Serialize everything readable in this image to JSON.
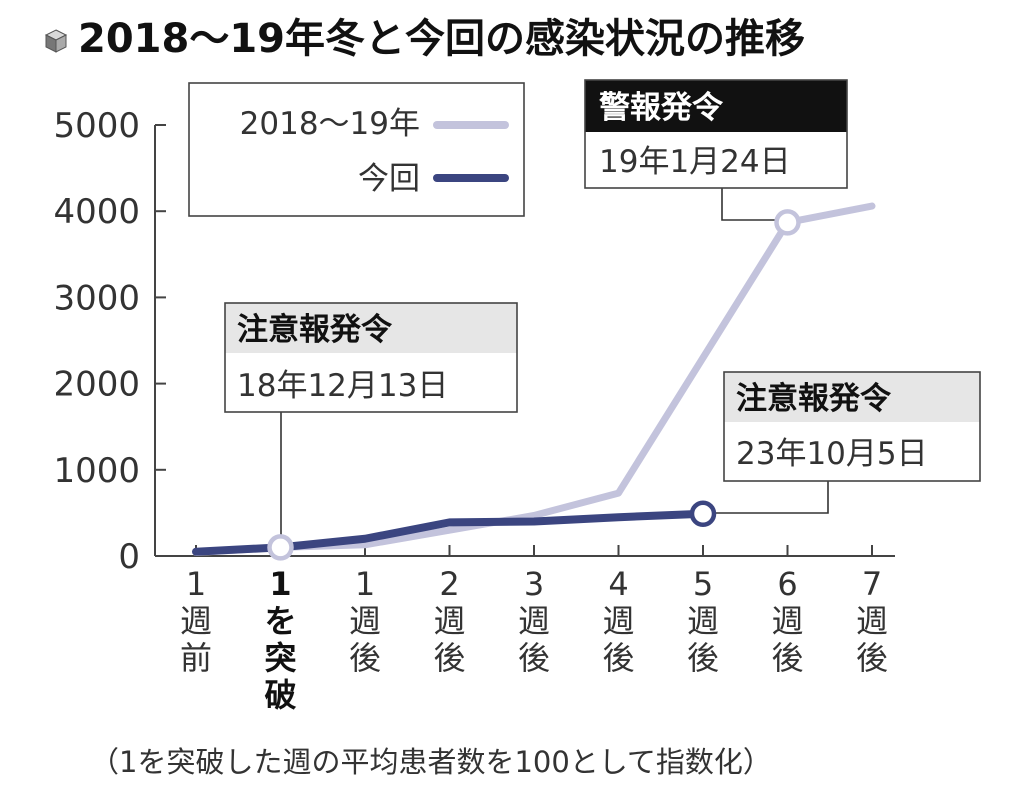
{
  "title": "2018～19年冬と今回の感染状況の推移",
  "title_icon": "cube-icon",
  "footnote": "（1を突破した週の平均患者数を100として指数化）",
  "colors": {
    "series_2018": "#c3c3dc",
    "series_current": "#3b4580",
    "axis": "#444444",
    "annotation_header_bg": "#e6e6e6",
    "annotation_dark_bg": "#111111"
  },
  "legend": {
    "items": [
      {
        "label": "2018～19年"
      },
      {
        "label": "今回"
      }
    ]
  },
  "annotations": [
    {
      "id": "caution-2018",
      "heading": "注意報発令",
      "date": "18年12月13日",
      "style": "light"
    },
    {
      "id": "warning-2019",
      "heading": "警報発令",
      "date": "19年1月24日",
      "style": "dark"
    },
    {
      "id": "caution-2023",
      "heading": "注意報発令",
      "date": "23年10月5日",
      "style": "light"
    }
  ],
  "chart_data": {
    "type": "line",
    "title": "2018～19年冬と今回の感染状況の推移",
    "xlabel": "",
    "ylabel": "",
    "ylim": [
      0,
      5000
    ],
    "yticks": [
      0,
      1000,
      2000,
      3000,
      4000,
      5000
    ],
    "grid": false,
    "legend_position": "top-left",
    "categories": [
      [
        "1",
        "週",
        "前"
      ],
      [
        "1",
        "を",
        "突",
        "破"
      ],
      [
        "1",
        "週",
        "後"
      ],
      [
        "2",
        "週",
        "後"
      ],
      [
        "3",
        "週",
        "後"
      ],
      [
        "4",
        "週",
        "後"
      ],
      [
        "5",
        "週",
        "後"
      ],
      [
        "6",
        "週",
        "後"
      ],
      [
        "7",
        "週",
        "後"
      ]
    ],
    "bold_category_index": 1,
    "series": [
      {
        "name": "2018～19年",
        "values": [
          40,
          100,
          130,
          300,
          470,
          730,
          2300,
          3870,
          4060
        ]
      },
      {
        "name": "今回",
        "values": [
          50,
          100,
          200,
          390,
          400,
          450,
          490,
          null,
          null
        ]
      }
    ],
    "markers": [
      {
        "series": 0,
        "index": 1
      },
      {
        "series": 0,
        "index": 7
      },
      {
        "series": 1,
        "index": 6
      }
    ]
  }
}
